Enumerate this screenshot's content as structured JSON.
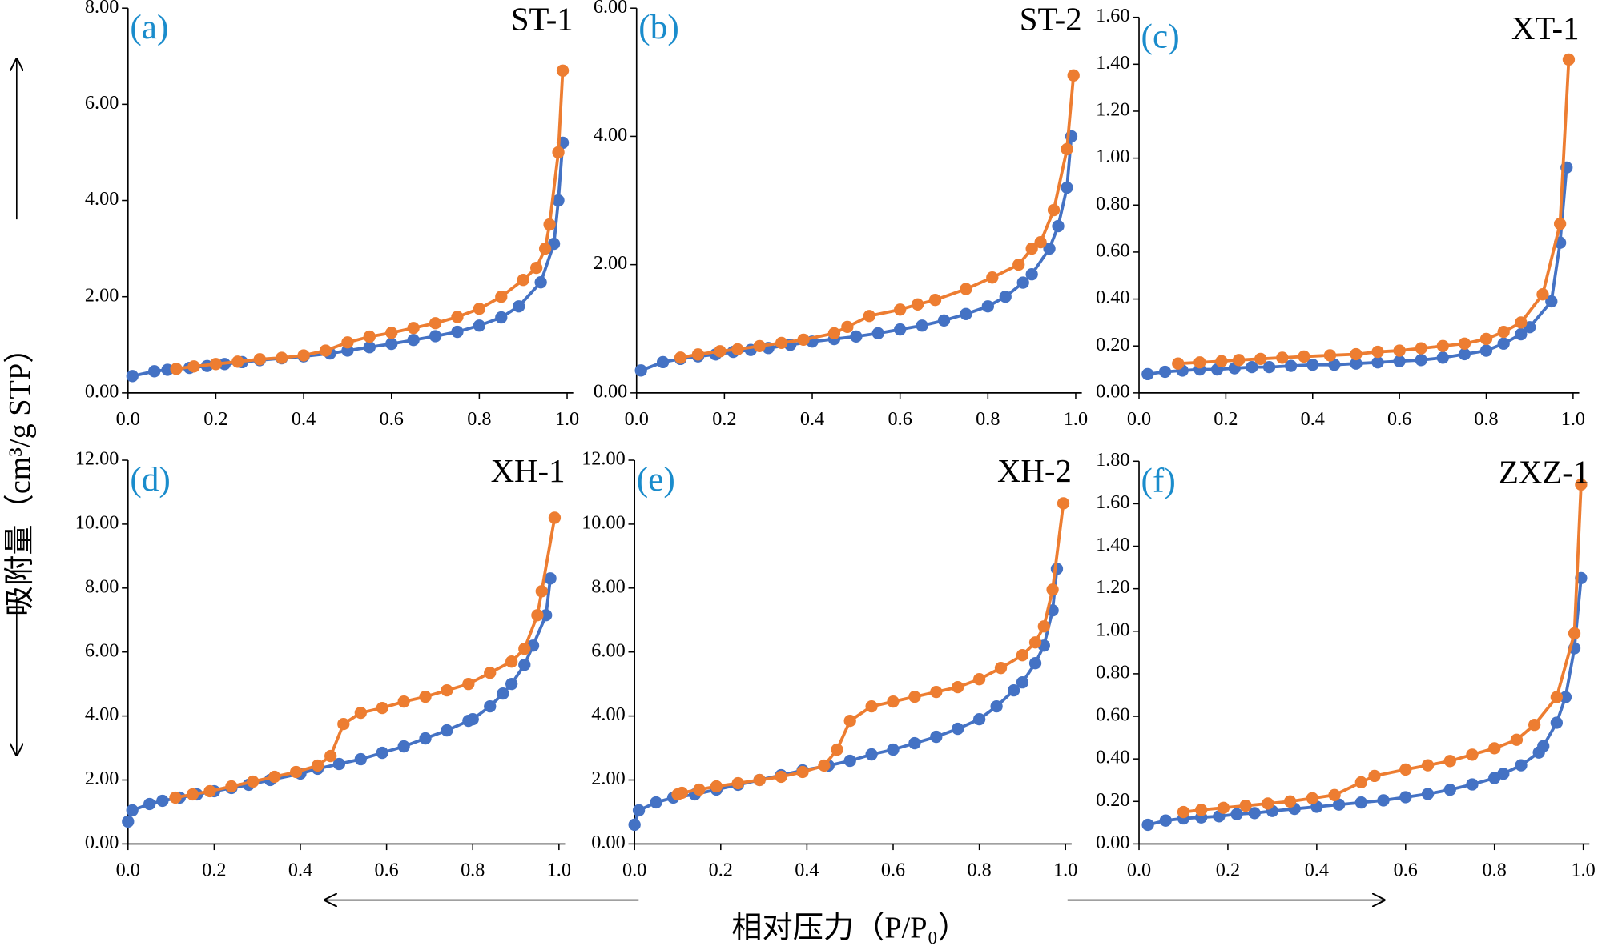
{
  "chart_data": [
    {
      "type": "line",
      "label": "(a)",
      "title": "ST-1",
      "xlim": [
        0,
        1
      ],
      "ylim": [
        0,
        8
      ],
      "xticks": [
        {
          "value": 0,
          "label": "0.0"
        },
        0.2,
        0.4,
        0.6,
        0.8,
        {
          "value": 1,
          "label": "1.0"
        }
      ],
      "yticks": [
        {
          "value": 0,
          "label": "0.00"
        },
        {
          "value": 2,
          "label": "2.00"
        },
        {
          "value": 4,
          "label": "4.00"
        },
        {
          "value": 6,
          "label": "6.00"
        },
        {
          "value": 8,
          "label": "8.00"
        }
      ],
      "series": [
        {
          "color": "#4472c4",
          "x": [
            0.01,
            0.06,
            0.09,
            0.14,
            0.18,
            0.22,
            0.26,
            0.3,
            0.35,
            0.4,
            0.46,
            0.5,
            0.55,
            0.6,
            0.65,
            0.7,
            0.75,
            0.8,
            0.85,
            0.89,
            0.94,
            0.97,
            0.98,
            0.99
          ],
          "values": [
            0.35,
            0.45,
            0.48,
            0.52,
            0.56,
            0.6,
            0.64,
            0.68,
            0.72,
            0.76,
            0.82,
            0.88,
            0.95,
            1.02,
            1.1,
            1.18,
            1.27,
            1.4,
            1.57,
            1.8,
            2.3,
            3.1,
            4.0,
            5.2
          ]
        },
        {
          "color": "#ed7d31",
          "x": [
            0.99,
            0.98,
            0.96,
            0.95,
            0.93,
            0.9,
            0.85,
            0.8,
            0.75,
            0.7,
            0.65,
            0.6,
            0.55,
            0.5,
            0.45,
            0.4,
            0.35,
            0.3,
            0.25,
            0.2,
            0.15,
            0.11
          ],
          "values": [
            6.7,
            5.0,
            3.5,
            3.0,
            2.6,
            2.35,
            2.0,
            1.75,
            1.58,
            1.45,
            1.35,
            1.25,
            1.17,
            1.05,
            0.88,
            0.78,
            0.73,
            0.7,
            0.65,
            0.6,
            0.55,
            0.5
          ]
        }
      ]
    },
    {
      "type": "line",
      "label": "(b)",
      "title": "ST-2",
      "xlim": [
        0,
        1
      ],
      "ylim": [
        0,
        6
      ],
      "xticks": [
        {
          "value": 0,
          "label": "0.0"
        },
        0.2,
        0.4,
        0.6,
        0.8,
        {
          "value": 1,
          "label": "1.0"
        }
      ],
      "yticks": [
        {
          "value": 0,
          "label": "0.00"
        },
        {
          "value": 2,
          "label": "2.00"
        },
        {
          "value": 4,
          "label": "4.00"
        },
        {
          "value": 6,
          "label": "6.00"
        }
      ],
      "series": [
        {
          "color": "#4472c4",
          "x": [
            0.01,
            0.06,
            0.1,
            0.14,
            0.18,
            0.22,
            0.26,
            0.3,
            0.35,
            0.4,
            0.45,
            0.5,
            0.55,
            0.6,
            0.65,
            0.7,
            0.75,
            0.8,
            0.84,
            0.88,
            0.9,
            0.94,
            0.96,
            0.98,
            0.99
          ],
          "values": [
            0.35,
            0.48,
            0.53,
            0.57,
            0.6,
            0.64,
            0.67,
            0.7,
            0.75,
            0.8,
            0.84,
            0.88,
            0.93,
            0.99,
            1.05,
            1.13,
            1.23,
            1.35,
            1.5,
            1.72,
            1.85,
            2.25,
            2.6,
            3.2,
            4.0
          ]
        },
        {
          "color": "#ed7d31",
          "x": [
            0.995,
            0.98,
            0.95,
            0.92,
            0.9,
            0.87,
            0.81,
            0.75,
            0.68,
            0.64,
            0.6,
            0.53,
            0.48,
            0.45,
            0.38,
            0.33,
            0.28,
            0.23,
            0.19,
            0.14,
            0.1
          ],
          "values": [
            4.95,
            3.8,
            2.85,
            2.35,
            2.25,
            2.0,
            1.8,
            1.62,
            1.45,
            1.38,
            1.3,
            1.2,
            1.03,
            0.93,
            0.83,
            0.78,
            0.73,
            0.68,
            0.65,
            0.6,
            0.55
          ]
        }
      ]
    },
    {
      "type": "line",
      "label": "(c)",
      "title": "XT-1",
      "xlim": [
        0,
        1
      ],
      "ylim": [
        0,
        1.6
      ],
      "xticks": [
        {
          "value": 0,
          "label": "0.0"
        },
        0.2,
        0.4,
        0.6,
        0.8,
        {
          "value": 1,
          "label": "1.0"
        }
      ],
      "yticks": [
        {
          "value": 0,
          "label": "0.00"
        },
        {
          "value": 0.2,
          "label": "0.20"
        },
        {
          "value": 0.4,
          "label": "0.40"
        },
        {
          "value": 0.6,
          "label": "0.60"
        },
        {
          "value": 0.8,
          "label": "0.80"
        },
        {
          "value": 1,
          "label": "1.00"
        },
        {
          "value": 1.2,
          "label": "1.20"
        },
        {
          "value": 1.4,
          "label": "1.40"
        },
        {
          "value": 1.6,
          "label": "1.60"
        }
      ],
      "series": [
        {
          "color": "#4472c4",
          "x": [
            0.02,
            0.06,
            0.1,
            0.14,
            0.18,
            0.22,
            0.26,
            0.3,
            0.35,
            0.4,
            0.45,
            0.5,
            0.55,
            0.6,
            0.65,
            0.7,
            0.75,
            0.8,
            0.84,
            0.88,
            0.9,
            0.95,
            0.97,
            0.985
          ],
          "values": [
            0.08,
            0.09,
            0.095,
            0.1,
            0.1,
            0.105,
            0.11,
            0.11,
            0.115,
            0.12,
            0.12,
            0.125,
            0.13,
            0.135,
            0.14,
            0.15,
            0.165,
            0.18,
            0.21,
            0.25,
            0.28,
            0.39,
            0.64,
            0.96
          ]
        },
        {
          "color": "#ed7d31",
          "x": [
            0.99,
            0.97,
            0.93,
            0.88,
            0.84,
            0.8,
            0.75,
            0.7,
            0.65,
            0.6,
            0.55,
            0.5,
            0.44,
            0.38,
            0.33,
            0.28,
            0.23,
            0.19,
            0.14,
            0.09
          ],
          "values": [
            1.42,
            0.72,
            0.42,
            0.3,
            0.26,
            0.23,
            0.21,
            0.2,
            0.19,
            0.18,
            0.175,
            0.165,
            0.16,
            0.155,
            0.15,
            0.145,
            0.14,
            0.135,
            0.13,
            0.125
          ]
        }
      ]
    },
    {
      "type": "line",
      "label": "(d)",
      "title": "XH-1",
      "xlim": [
        0,
        1
      ],
      "ylim": [
        0,
        12
      ],
      "xticks": [
        {
          "value": 0,
          "label": "0.0"
        },
        0.2,
        0.4,
        0.6,
        0.8,
        {
          "value": 1,
          "label": "1.0"
        }
      ],
      "yticks": [
        {
          "value": 0,
          "label": "0.00"
        },
        {
          "value": 2,
          "label": "2.00"
        },
        {
          "value": 4,
          "label": "4.00"
        },
        {
          "value": 6,
          "label": "6.00"
        },
        {
          "value": 8,
          "label": "8.00"
        },
        {
          "value": 10,
          "label": "10.00"
        },
        {
          "value": 12,
          "label": "12.00"
        }
      ],
      "series": [
        {
          "color": "#4472c4",
          "x": [
            0,
            0.01,
            0.05,
            0.08,
            0.12,
            0.16,
            0.2,
            0.24,
            0.28,
            0.33,
            0.4,
            0.44,
            0.49,
            0.54,
            0.59,
            0.64,
            0.69,
            0.74,
            0.79,
            0.8,
            0.84,
            0.87,
            0.89,
            0.92,
            0.94,
            0.97,
            0.98
          ],
          "values": [
            0.7,
            1.05,
            1.25,
            1.35,
            1.45,
            1.55,
            1.65,
            1.75,
            1.85,
            2.0,
            2.2,
            2.35,
            2.5,
            2.65,
            2.85,
            3.05,
            3.3,
            3.55,
            3.85,
            3.9,
            4.3,
            4.7,
            5.0,
            5.6,
            6.2,
            7.15,
            8.3
          ]
        },
        {
          "color": "#ed7d31",
          "x": [
            0.99,
            0.96,
            0.95,
            0.92,
            0.89,
            0.84,
            0.79,
            0.74,
            0.69,
            0.64,
            0.59,
            0.54,
            0.5,
            0.47,
            0.44,
            0.39,
            0.34,
            0.29,
            0.24,
            0.19,
            0.15,
            0.11
          ],
          "values": [
            10.2,
            7.9,
            7.15,
            6.1,
            5.7,
            5.35,
            5.0,
            4.8,
            4.6,
            4.45,
            4.25,
            4.1,
            3.75,
            2.75,
            2.45,
            2.25,
            2.1,
            1.95,
            1.8,
            1.65,
            1.55,
            1.45
          ]
        }
      ]
    },
    {
      "type": "line",
      "label": "(e)",
      "title": "XH-2",
      "xlim": [
        0,
        1
      ],
      "ylim": [
        0,
        12
      ],
      "xticks": [
        {
          "value": 0,
          "label": "0.0"
        },
        0.2,
        0.4,
        0.6,
        0.8,
        {
          "value": 1,
          "label": "1.0"
        }
      ],
      "yticks": [
        {
          "value": 0,
          "label": "0.00"
        },
        {
          "value": 2,
          "label": "2.00"
        },
        {
          "value": 4,
          "label": "4.00"
        },
        {
          "value": 6,
          "label": "6.00"
        },
        {
          "value": 8,
          "label": "8.00"
        },
        {
          "value": 10,
          "label": "10.00"
        },
        {
          "value": 12,
          "label": "12.00"
        }
      ],
      "series": [
        {
          "color": "#4472c4",
          "x": [
            0,
            0.01,
            0.05,
            0.09,
            0.14,
            0.19,
            0.24,
            0.29,
            0.34,
            0.39,
            0.45,
            0.5,
            0.55,
            0.6,
            0.65,
            0.7,
            0.75,
            0.8,
            0.84,
            0.88,
            0.9,
            0.93,
            0.95,
            0.97,
            0.98
          ],
          "values": [
            0.6,
            1.05,
            1.3,
            1.45,
            1.55,
            1.7,
            1.85,
            2.0,
            2.15,
            2.3,
            2.45,
            2.6,
            2.8,
            2.95,
            3.15,
            3.35,
            3.6,
            3.9,
            4.3,
            4.8,
            5.05,
            5.65,
            6.2,
            7.3,
            8.6
          ]
        },
        {
          "color": "#ed7d31",
          "x": [
            0.995,
            0.97,
            0.95,
            0.93,
            0.9,
            0.85,
            0.8,
            0.75,
            0.7,
            0.65,
            0.6,
            0.55,
            0.5,
            0.47,
            0.44,
            0.39,
            0.34,
            0.29,
            0.24,
            0.19,
            0.15,
            0.11,
            0.1
          ],
          "values": [
            10.65,
            7.95,
            6.8,
            6.3,
            5.9,
            5.5,
            5.15,
            4.9,
            4.75,
            4.6,
            4.45,
            4.3,
            3.85,
            2.95,
            2.45,
            2.25,
            2.1,
            2.0,
            1.9,
            1.8,
            1.7,
            1.6,
            1.55
          ]
        }
      ]
    },
    {
      "type": "line",
      "label": "(f)",
      "title": "ZXZ-1",
      "xlim": [
        0,
        1
      ],
      "ylim": [
        0,
        1.8
      ],
      "xticks": [
        {
          "value": 0,
          "label": "0.0"
        },
        0.2,
        0.4,
        0.6,
        0.8,
        {
          "value": 1,
          "label": "1.0"
        }
      ],
      "yticks": [
        {
          "value": 0,
          "label": "0.00"
        },
        {
          "value": 0.2,
          "label": "0.20"
        },
        {
          "value": 0.4,
          "label": "0.40"
        },
        {
          "value": 0.6,
          "label": "0.60"
        },
        {
          "value": 0.8,
          "label": "0.80"
        },
        {
          "value": 1,
          "label": "1.00"
        },
        {
          "value": 1.2,
          "label": "1.20"
        },
        {
          "value": 1.4,
          "label": "1.40"
        },
        {
          "value": 1.6,
          "label": "1.60"
        },
        {
          "value": 1.8,
          "label": "1.80"
        }
      ],
      "series": [
        {
          "color": "#4472c4",
          "x": [
            0.02,
            0.06,
            0.1,
            0.14,
            0.18,
            0.22,
            0.26,
            0.3,
            0.35,
            0.4,
            0.45,
            0.5,
            0.55,
            0.6,
            0.65,
            0.7,
            0.75,
            0.8,
            0.82,
            0.86,
            0.9,
            0.91,
            0.94,
            0.96,
            0.98,
            0.995
          ],
          "values": [
            0.09,
            0.11,
            0.12,
            0.125,
            0.13,
            0.14,
            0.145,
            0.155,
            0.165,
            0.175,
            0.185,
            0.195,
            0.205,
            0.22,
            0.235,
            0.255,
            0.28,
            0.31,
            0.33,
            0.37,
            0.43,
            0.46,
            0.57,
            0.69,
            0.92,
            1.25
          ]
        },
        {
          "color": "#ed7d31",
          "x": [
            0.995,
            0.98,
            0.94,
            0.89,
            0.85,
            0.8,
            0.75,
            0.7,
            0.65,
            0.6,
            0.53,
            0.5,
            0.44,
            0.39,
            0.34,
            0.29,
            0.24,
            0.19,
            0.14,
            0.1
          ],
          "values": [
            1.69,
            0.99,
            0.69,
            0.56,
            0.49,
            0.45,
            0.42,
            0.39,
            0.37,
            0.35,
            0.32,
            0.29,
            0.23,
            0.215,
            0.2,
            0.19,
            0.18,
            0.17,
            0.16,
            0.15
          ]
        }
      ]
    }
  ],
  "axis_labels": {
    "y": "吸附量（cm³/g STP）",
    "x": "相对压力（P/P₀）"
  }
}
